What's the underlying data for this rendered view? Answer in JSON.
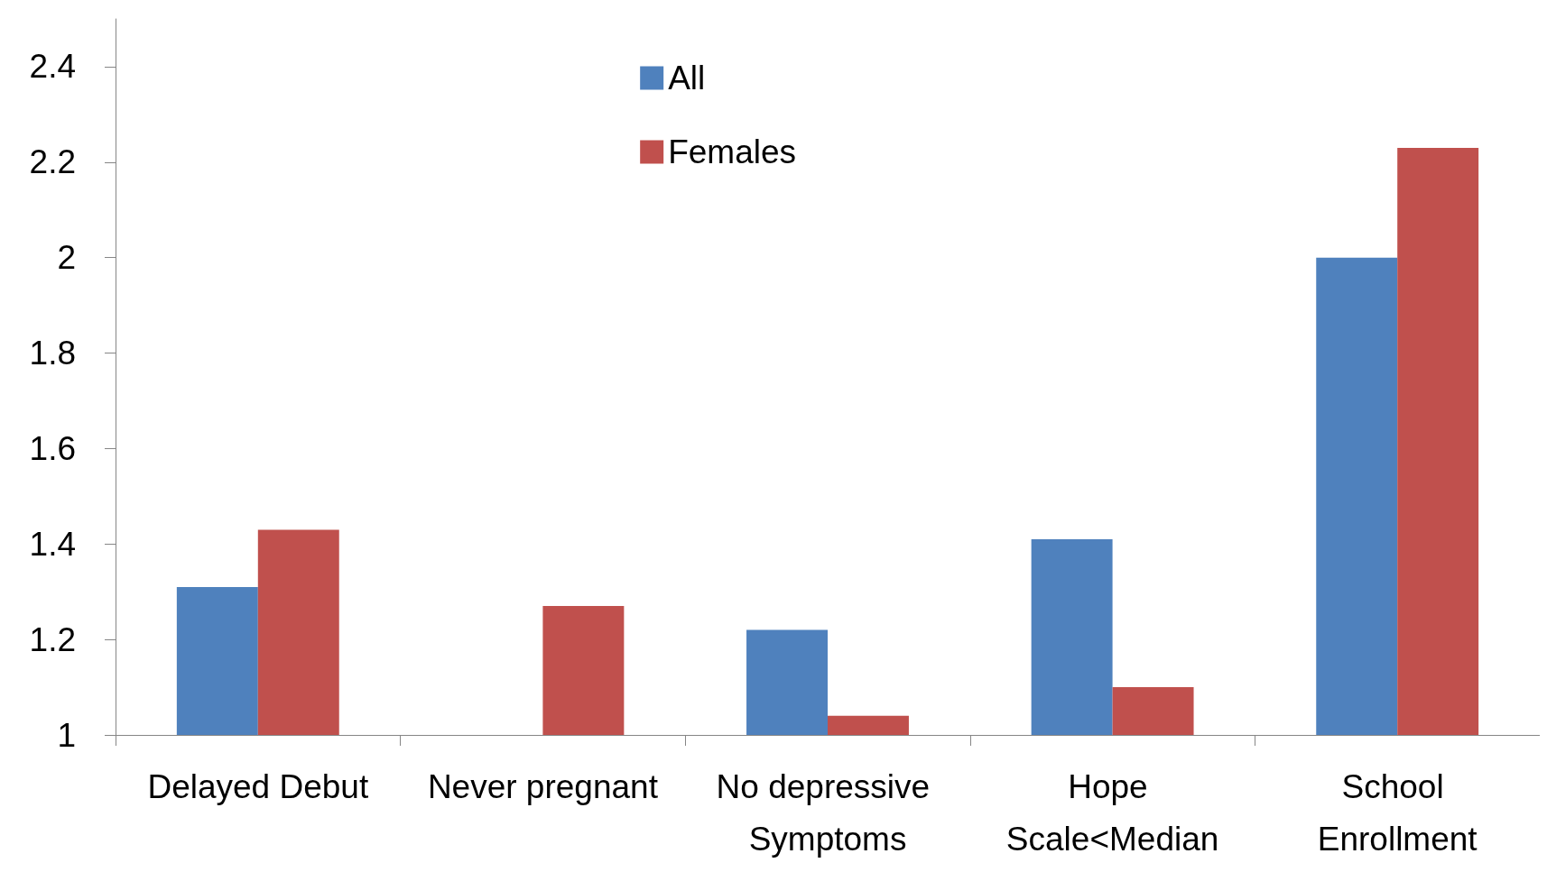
{
  "chart_data": {
    "type": "bar",
    "categories": [
      "Delayed Debut",
      "Never pregnant",
      "No depressive Symptoms",
      "Hope Scale<Median",
      "School Enrollment"
    ],
    "series": [
      {
        "name": "All",
        "color": "#4f81bd",
        "values": [
          1.31,
          null,
          1.22,
          1.41,
          2.0
        ]
      },
      {
        "name": "Females",
        "color": "#c0504d",
        "values": [
          1.43,
          1.27,
          1.04,
          1.1,
          2.23
        ]
      }
    ],
    "ylim": [
      1,
      2.5
    ],
    "yticks": [
      1,
      1.2,
      1.4,
      1.6,
      1.8,
      2,
      2.2,
      2.4
    ],
    "grid": false,
    "legend": "top"
  }
}
